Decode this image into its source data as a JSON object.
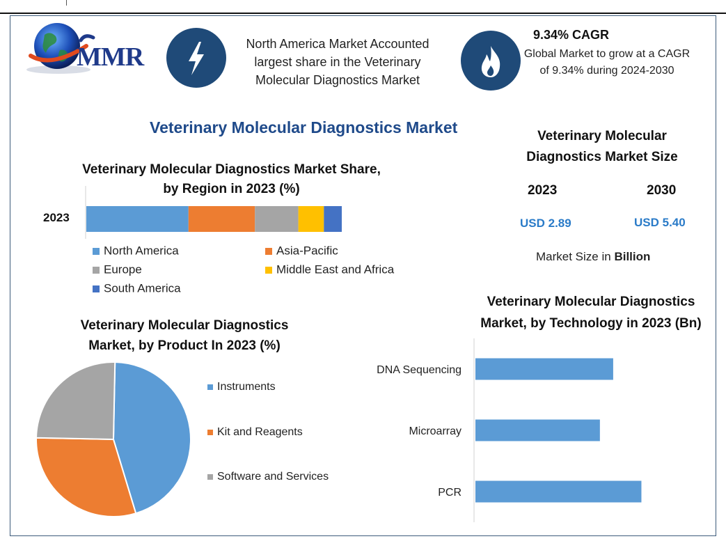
{
  "brand": {
    "logo_text": "MMR"
  },
  "headline_cards": [
    {
      "icon": "lightning-icon",
      "text": "North America Market Accounted largest share in the Veterinary Molecular Diagnostics Market"
    },
    {
      "icon": "flame-icon",
      "title": "9.34% CAGR",
      "text": "Global Market to grow at a CAGR of 9.34% during 2024-2030"
    }
  ],
  "main_title": "Veterinary Molecular Diagnostics Market",
  "market_size": {
    "title": "Veterinary Molecular Diagnostics Market Size",
    "year1": "2023",
    "year2": "2030",
    "value1": "USD 2.89",
    "value2": "USD 5.40",
    "note_prefix": "Market Size in ",
    "note_bold": "Billion"
  },
  "chart_data": [
    {
      "type": "bar",
      "orientation": "horizontal-stacked",
      "title": "Veterinary Molecular Diagnostics Market Share, by Region in 2023 (%)",
      "categories": [
        "2023"
      ],
      "series": [
        {
          "name": "North America",
          "values": [
            40
          ],
          "color": "#5b9bd5"
        },
        {
          "name": "Asia-Pacific",
          "values": [
            26
          ],
          "color": "#ed7d31"
        },
        {
          "name": "Europe",
          "values": [
            17
          ],
          "color": "#a5a5a5"
        },
        {
          "name": "Middle East and Africa",
          "values": [
            10
          ],
          "color": "#ffc000"
        },
        {
          "name": "South America",
          "values": [
            7
          ],
          "color": "#4472c4"
        }
      ],
      "legend": "bottom"
    },
    {
      "type": "pie",
      "title": "Veterinary Molecular Diagnostics Market, by Product In 2023 (%)",
      "slices": [
        {
          "name": "Instruments",
          "value": 45,
          "color": "#5b9bd5"
        },
        {
          "name": "Kit and Reagents",
          "value": 30,
          "color": "#ed7d31"
        },
        {
          "name": "Software and Services",
          "value": 25,
          "color": "#a5a5a5"
        }
      ],
      "legend": "right"
    },
    {
      "type": "bar",
      "orientation": "horizontal",
      "title": "Veterinary Molecular Diagnostics Market, by Technology in 2023 (Bn)",
      "categories": [
        "DNA Sequencing",
        "Microarray",
        "PCR"
      ],
      "values": [
        0.83,
        0.75,
        1.0
      ],
      "xlim": [
        0,
        1.3
      ],
      "color": "#5b9bd5"
    }
  ]
}
